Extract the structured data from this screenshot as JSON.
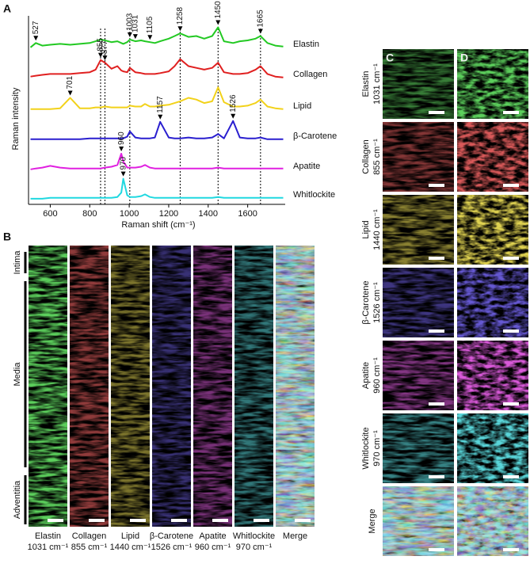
{
  "chart_data": {
    "type": "line",
    "panel_label": "A",
    "xlabel": "Raman shift (cm⁻¹)",
    "ylabel": "Raman intensity",
    "x": [
      500,
      527,
      560,
      600,
      650,
      701,
      750,
      800,
      830,
      855,
      877,
      910,
      940,
      960,
      970,
      990,
      1003,
      1031,
      1060,
      1080,
      1105,
      1130,
      1157,
      1200,
      1230,
      1258,
      1300,
      1340,
      1380,
      1420,
      1450,
      1480,
      1526,
      1560,
      1600,
      1640,
      1665,
      1700,
      1740,
      1780
    ],
    "xlim": [
      490,
      1790
    ],
    "xticks": [
      600,
      800,
      1000,
      1200,
      1400,
      1600
    ],
    "reference_lines": [
      855,
      877,
      1003,
      1258,
      1450,
      1665
    ],
    "series": [
      {
        "name": "Elastin",
        "color": "#22c922",
        "peaks": [
          527,
          1003,
          1031,
          1105,
          1258,
          1450,
          1665
        ],
        "values": [
          4,
          14,
          8,
          10,
          12,
          10,
          12,
          14,
          18,
          22,
          20,
          16,
          18,
          14,
          12,
          16,
          22,
          18,
          20,
          18,
          16,
          14,
          18,
          24,
          30,
          36,
          28,
          30,
          24,
          30,
          50,
          18,
          14,
          18,
          20,
          24,
          30,
          14,
          8,
          6
        ]
      },
      {
        "name": "Collagen",
        "color": "#e02020",
        "peaks": [
          855,
          877
        ],
        "values": [
          6,
          8,
          10,
          12,
          12,
          12,
          14,
          16,
          22,
          44,
          38,
          24,
          30,
          20,
          18,
          16,
          26,
          16,
          14,
          12,
          12,
          12,
          14,
          18,
          30,
          46,
          30,
          26,
          22,
          26,
          38,
          16,
          12,
          12,
          14,
          22,
          30,
          12,
          6,
          4
        ]
      },
      {
        "name": "Lipid",
        "color": "#f2d21a",
        "peaks": [
          701
        ],
        "values": [
          4,
          4,
          4,
          4,
          6,
          30,
          6,
          6,
          8,
          8,
          10,
          8,
          8,
          8,
          8,
          8,
          12,
          10,
          10,
          16,
          10,
          10,
          12,
          14,
          18,
          22,
          30,
          26,
          18,
          22,
          54,
          20,
          10,
          10,
          12,
          18,
          26,
          10,
          6,
          4
        ]
      },
      {
        "name": "β-Carotene",
        "color": "#2a1fcf",
        "peaks": [
          1157,
          1526
        ],
        "values": [
          4,
          4,
          4,
          4,
          4,
          4,
          4,
          6,
          6,
          6,
          6,
          6,
          6,
          6,
          6,
          10,
          22,
          8,
          6,
          6,
          6,
          8,
          44,
          8,
          6,
          6,
          8,
          6,
          6,
          8,
          16,
          6,
          46,
          8,
          6,
          6,
          8,
          4,
          4,
          4
        ]
      },
      {
        "name": "Apatite",
        "color": "#e020e0",
        "peaks": [
          960
        ],
        "values": [
          4,
          6,
          8,
          12,
          8,
          6,
          6,
          6,
          6,
          6,
          8,
          10,
          14,
          40,
          22,
          8,
          8,
          8,
          10,
          14,
          8,
          6,
          6,
          6,
          6,
          6,
          6,
          6,
          6,
          6,
          8,
          6,
          6,
          6,
          6,
          6,
          6,
          6,
          6,
          6
        ]
      },
      {
        "name": "Whitlockite",
        "color": "#20d8e0",
        "peaks": [
          970
        ],
        "values": [
          2,
          2,
          2,
          4,
          4,
          4,
          4,
          4,
          4,
          4,
          4,
          4,
          6,
          16,
          48,
          10,
          6,
          6,
          8,
          12,
          6,
          4,
          4,
          4,
          4,
          4,
          4,
          4,
          4,
          4,
          6,
          4,
          4,
          4,
          4,
          4,
          4,
          4,
          4,
          4
        ]
      }
    ]
  },
  "panel_b": {
    "panel_label": "B",
    "rows": [
      "Intima",
      "Media",
      "Adventitia"
    ],
    "columns": [
      {
        "name": "Elastin",
        "band": "1031 cm⁻¹"
      },
      {
        "name": "Collagen",
        "band": "855 cm⁻¹"
      },
      {
        "name": "Lipid",
        "band": "1440 cm⁻¹"
      },
      {
        "name": "β-Carotene",
        "band": "1526 cm⁻¹"
      },
      {
        "name": "Apatite",
        "band": "960 cm⁻¹"
      },
      {
        "name": "Whitlockite",
        "band": "970 cm⁻¹"
      },
      {
        "name": "Merge"
      }
    ]
  },
  "panel_cd": {
    "panel_labels": [
      "C",
      "D"
    ],
    "rows": [
      {
        "name": "Elastin",
        "band": "1031 cm⁻¹"
      },
      {
        "name": "Collagen",
        "band": "855 cm⁻¹"
      },
      {
        "name": "Lipid",
        "band": "1440 cm⁻¹"
      },
      {
        "name": "β-Carotene",
        "band": "1526 cm⁻¹"
      },
      {
        "name": "Apatite",
        "band": "960 cm⁻¹"
      },
      {
        "name": "Whitlockite",
        "band": "970 cm⁻¹"
      },
      {
        "name": "Merge"
      }
    ]
  }
}
